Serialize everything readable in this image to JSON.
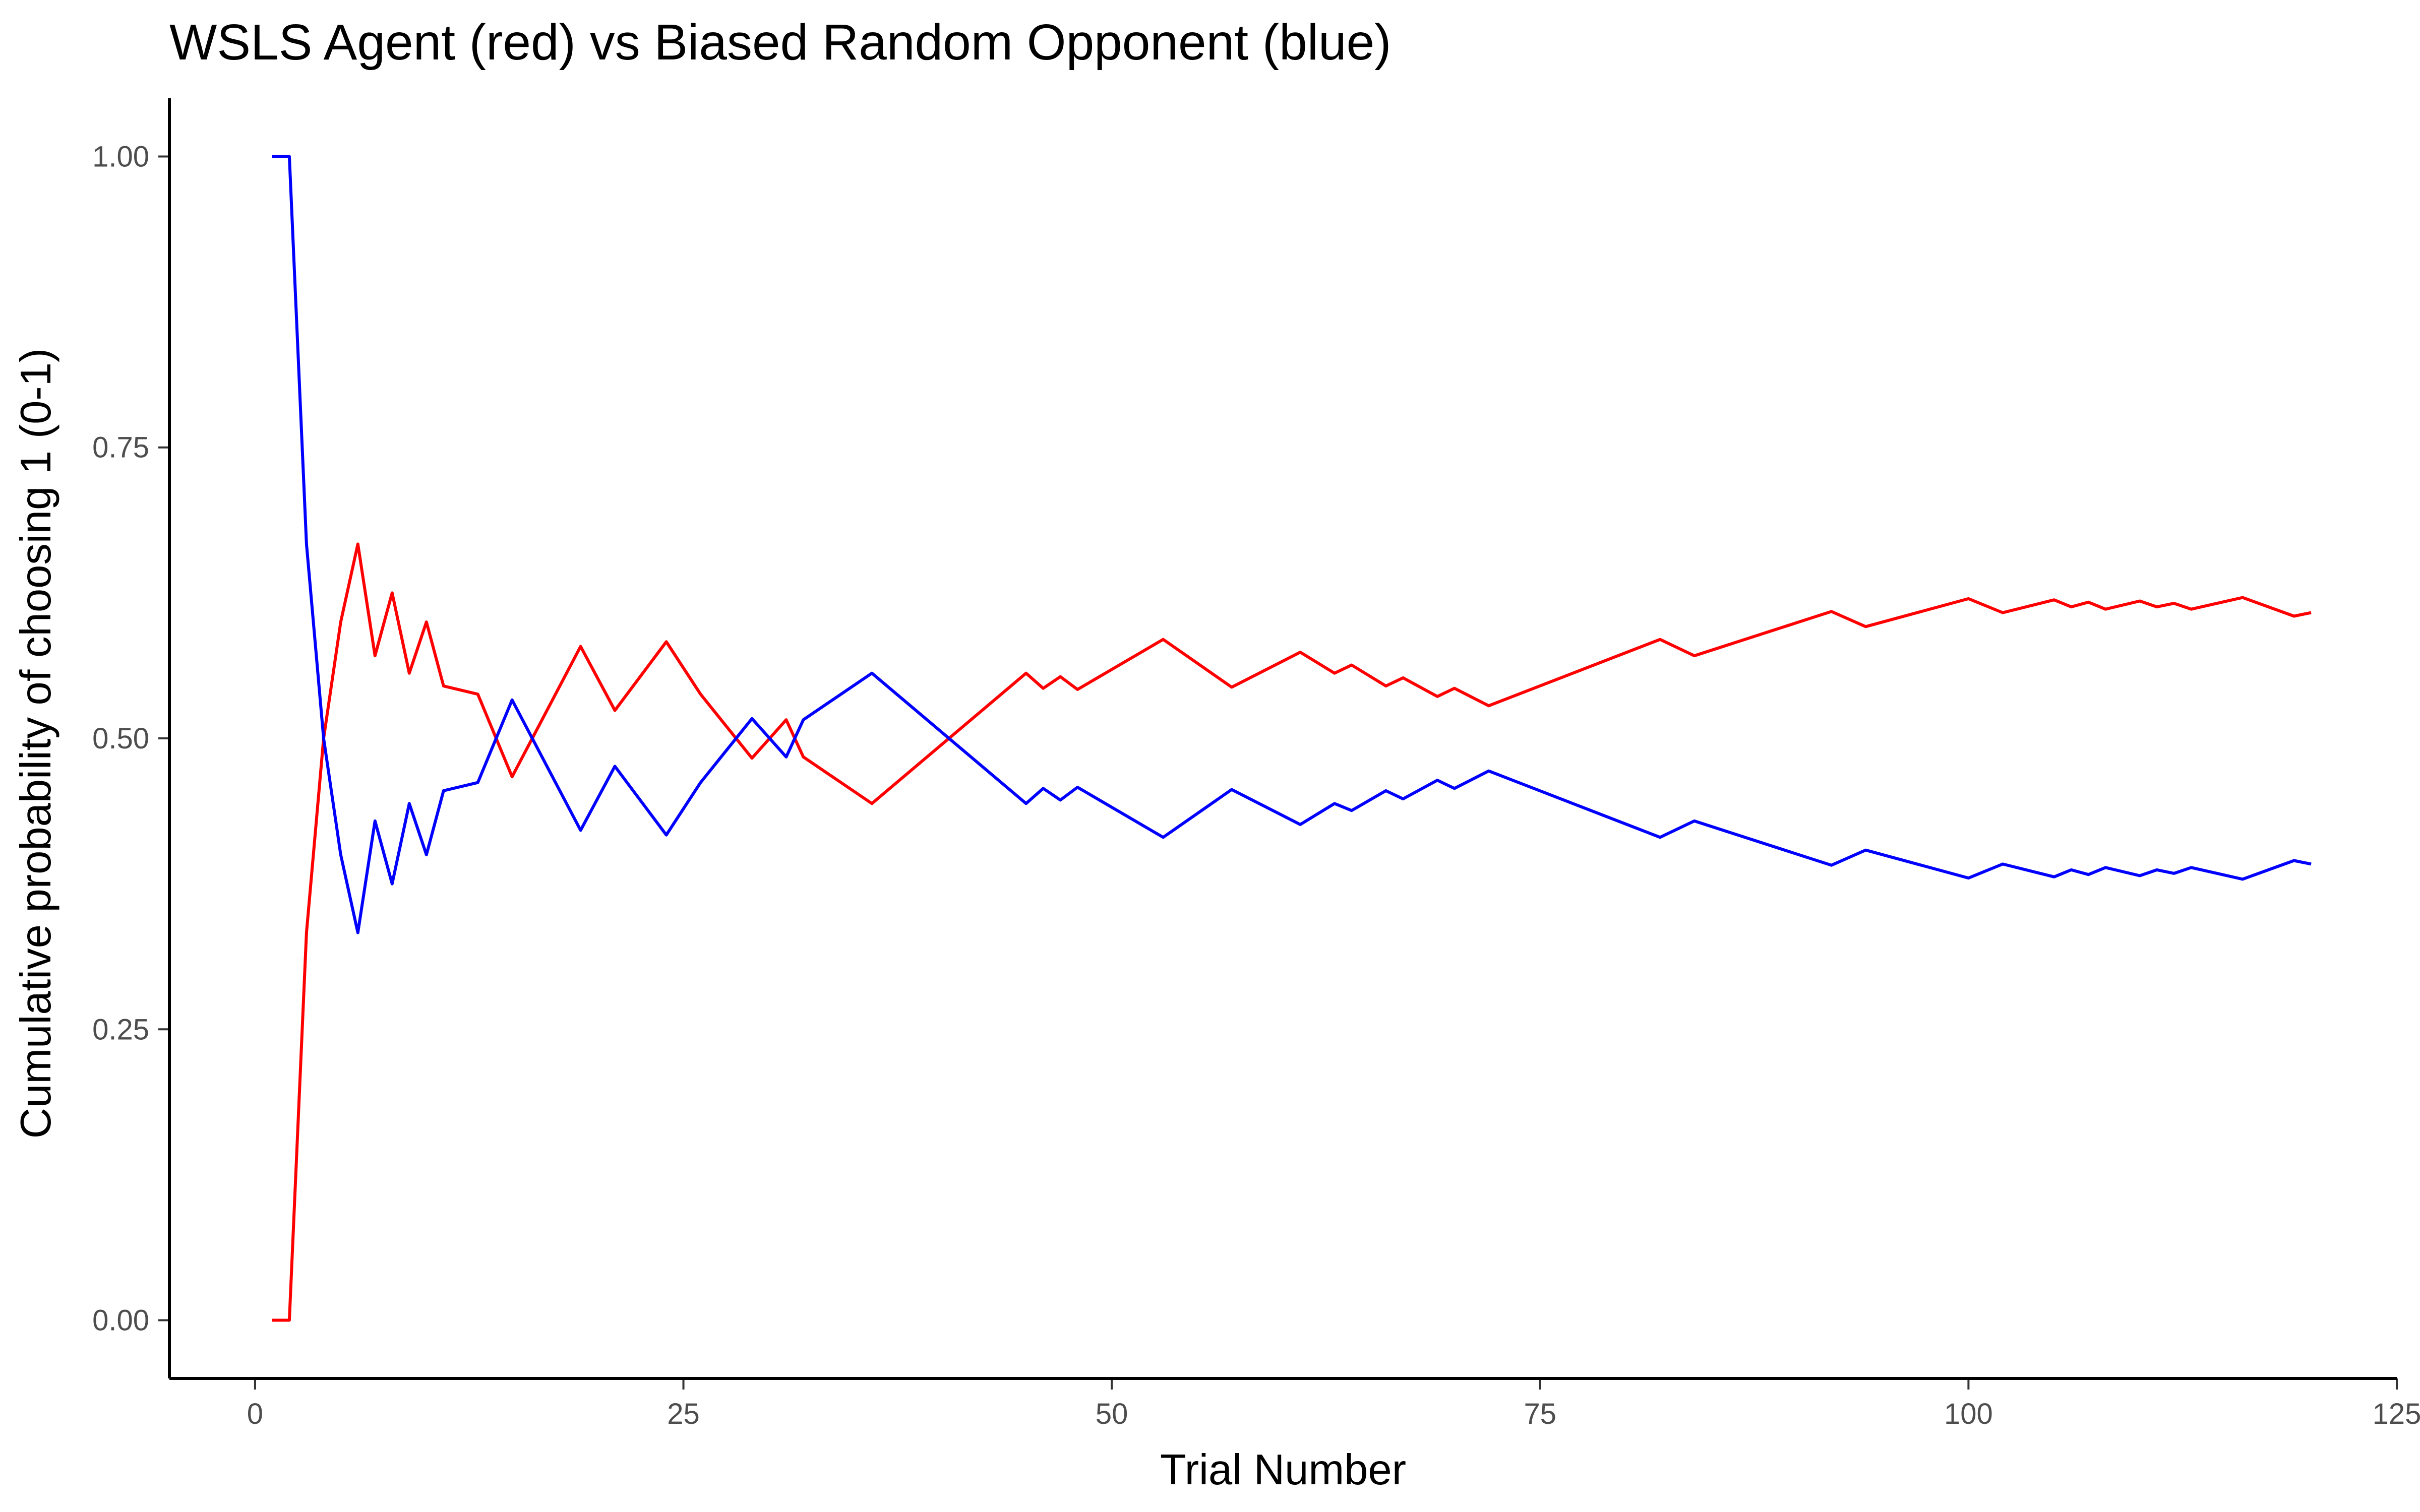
{
  "chart_data": {
    "type": "line",
    "title": "WSLS Agent (red) vs Biased Random Opponent (blue)",
    "xlabel": "Trial Number",
    "ylabel": "Cumulative probability of choosing 1 (0-1)",
    "xlim": [
      -5,
      125
    ],
    "ylim": [
      -0.05,
      1.05
    ],
    "x_ticks": [
      0,
      25,
      50,
      75,
      100,
      125
    ],
    "x_tick_labels": [
      "0",
      "25",
      "50",
      "75",
      "100",
      "125"
    ],
    "y_ticks": [
      0,
      0.25,
      0.5,
      0.75,
      1.0
    ],
    "y_tick_labels": [
      "0.00",
      "0.25",
      "0.50",
      "0.75",
      "1.00"
    ],
    "grid": false,
    "legend": "none",
    "series": [
      {
        "color": "#ff0000",
        "points": [
          [
            1,
            0
          ],
          [
            2,
            0
          ],
          [
            3,
            0.333
          ],
          [
            4,
            0.5
          ],
          [
            5,
            0.6
          ],
          [
            6,
            0.667
          ],
          [
            7,
            0.571
          ],
          [
            8,
            0.625
          ],
          [
            9,
            0.556
          ],
          [
            10,
            0.6
          ],
          [
            11,
            0.545
          ],
          [
            13,
            0.538
          ],
          [
            15,
            0.467
          ],
          [
            19,
            0.579
          ],
          [
            21,
            0.524
          ],
          [
            24,
            0.583
          ],
          [
            26,
            0.538
          ],
          [
            29,
            0.483
          ],
          [
            31,
            0.516
          ],
          [
            32,
            0.484
          ],
          [
            36,
            0.444
          ],
          [
            45,
            0.556
          ],
          [
            46,
            0.543
          ],
          [
            47,
            0.553
          ],
          [
            48,
            0.542
          ],
          [
            53,
            0.585
          ],
          [
            57,
            0.544
          ],
          [
            61,
            0.574
          ],
          [
            63,
            0.556
          ],
          [
            64,
            0.563
          ],
          [
            66,
            0.545
          ],
          [
            67,
            0.552
          ],
          [
            69,
            0.536
          ],
          [
            70,
            0.543
          ],
          [
            72,
            0.528
          ],
          [
            82,
            0.585
          ],
          [
            84,
            0.571
          ],
          [
            92,
            0.609
          ],
          [
            94,
            0.596
          ],
          [
            100,
            0.62
          ],
          [
            102,
            0.608
          ],
          [
            105,
            0.619
          ],
          [
            106,
            0.613
          ],
          [
            107,
            0.617
          ],
          [
            108,
            0.611
          ],
          [
            110,
            0.618
          ],
          [
            111,
            0.613
          ],
          [
            112,
            0.616
          ],
          [
            113,
            0.611
          ],
          [
            116,
            0.621
          ],
          [
            119,
            0.605
          ],
          [
            120,
            0.608
          ]
        ]
      },
      {
        "color": "#0000ff",
        "points": [
          [
            1,
            1
          ],
          [
            2,
            1
          ],
          [
            3,
            0.667
          ],
          [
            4,
            0.5
          ],
          [
            5,
            0.4
          ],
          [
            6,
            0.333
          ],
          [
            7,
            0.429
          ],
          [
            8,
            0.375
          ],
          [
            9,
            0.444
          ],
          [
            10,
            0.4
          ],
          [
            11,
            0.455
          ],
          [
            13,
            0.462
          ],
          [
            15,
            0.533
          ],
          [
            19,
            0.421
          ],
          [
            21,
            0.476
          ],
          [
            24,
            0.417
          ],
          [
            26,
            0.462
          ],
          [
            29,
            0.517
          ],
          [
            31,
            0.484
          ],
          [
            32,
            0.516
          ],
          [
            36,
            0.556
          ],
          [
            45,
            0.444
          ],
          [
            46,
            0.457
          ],
          [
            47,
            0.447
          ],
          [
            48,
            0.458
          ],
          [
            53,
            0.415
          ],
          [
            57,
            0.456
          ],
          [
            61,
            0.426
          ],
          [
            63,
            0.444
          ],
          [
            64,
            0.438
          ],
          [
            66,
            0.455
          ],
          [
            67,
            0.448
          ],
          [
            69,
            0.464
          ],
          [
            70,
            0.457
          ],
          [
            72,
            0.472
          ],
          [
            82,
            0.415
          ],
          [
            84,
            0.429
          ],
          [
            92,
            0.391
          ],
          [
            94,
            0.404
          ],
          [
            100,
            0.38
          ],
          [
            102,
            0.392
          ],
          [
            105,
            0.381
          ],
          [
            106,
            0.387
          ],
          [
            107,
            0.383
          ],
          [
            108,
            0.389
          ],
          [
            110,
            0.382
          ],
          [
            111,
            0.387
          ],
          [
            112,
            0.384
          ],
          [
            113,
            0.389
          ],
          [
            116,
            0.379
          ],
          [
            119,
            0.395
          ],
          [
            120,
            0.392
          ]
        ]
      }
    ]
  }
}
